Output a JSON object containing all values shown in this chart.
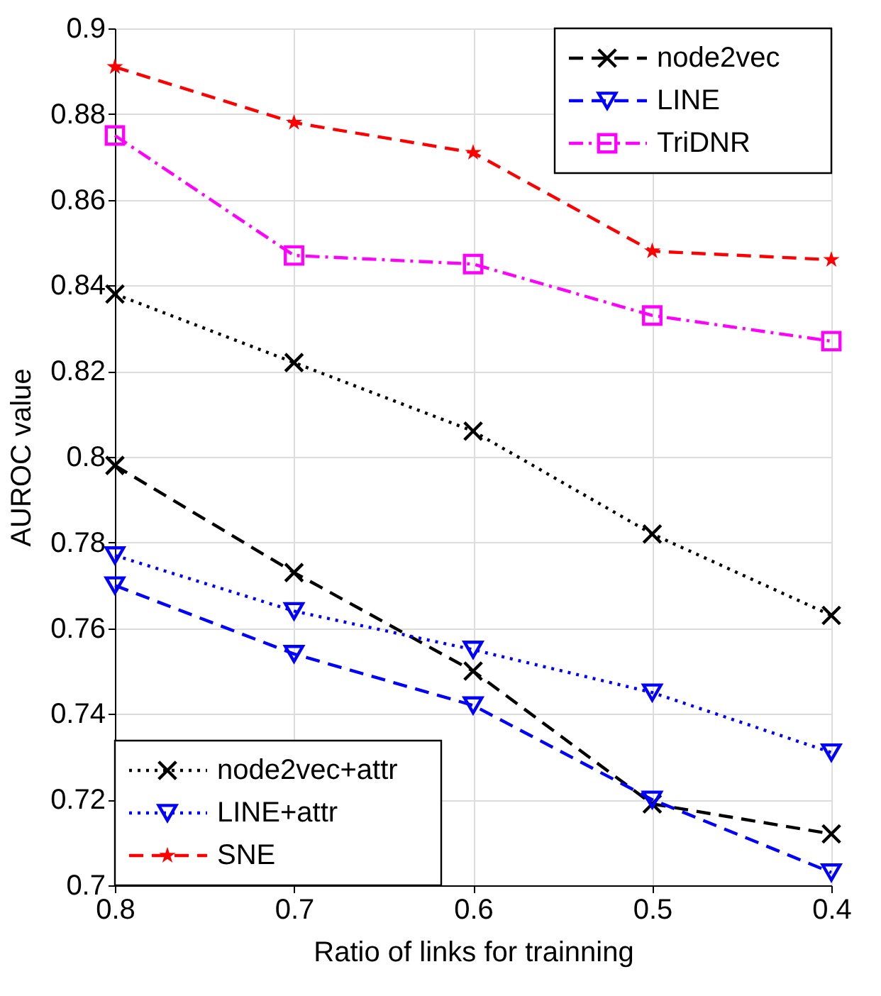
{
  "chart_data": {
    "type": "line",
    "xlabel": "Ratio of links for trainning",
    "ylabel": "AUROC value",
    "x": [
      0.8,
      0.7,
      0.6,
      0.5,
      0.4
    ],
    "series": [
      {
        "name": "node2vec",
        "color": "#000000",
        "marker": "cross",
        "line_style": "dashed",
        "values": [
          0.798,
          0.773,
          0.75,
          0.719,
          0.712
        ]
      },
      {
        "name": "LINE",
        "color": "#0000ff",
        "marker": "triangle",
        "line_style": "dashed",
        "values": [
          0.77,
          0.754,
          0.742,
          0.72,
          0.703
        ]
      },
      {
        "name": "TriDNR",
        "color": "#ff00ff",
        "marker": "square",
        "line_style": "dashdot",
        "values": [
          0.875,
          0.847,
          0.845,
          0.833,
          0.827
        ]
      },
      {
        "name": "node2vec+attr",
        "color": "#000000",
        "marker": "cross",
        "line_style": "dotted",
        "values": [
          0.838,
          0.822,
          0.806,
          0.782,
          0.763
        ]
      },
      {
        "name": "LINE+attr",
        "color": "#0000ff",
        "marker": "triangle",
        "line_style": "dotted",
        "values": [
          0.777,
          0.764,
          0.755,
          0.745,
          0.731
        ]
      },
      {
        "name": "SNE",
        "color": "#ff0000",
        "marker": "star",
        "line_style": "dashed",
        "values": [
          0.891,
          0.878,
          0.871,
          0.848,
          0.846
        ]
      }
    ],
    "xlim": [
      0.8,
      0.4
    ],
    "xticks": [
      0.8,
      0.7,
      0.6,
      0.5,
      0.4
    ],
    "ylim": [
      0.7,
      0.9
    ],
    "yticks": [
      0.7,
      0.72,
      0.74,
      0.76,
      0.78,
      0.8,
      0.82,
      0.84,
      0.86,
      0.88,
      0.9
    ],
    "grid": true,
    "legend": [
      "top right",
      "bottom left"
    ]
  }
}
